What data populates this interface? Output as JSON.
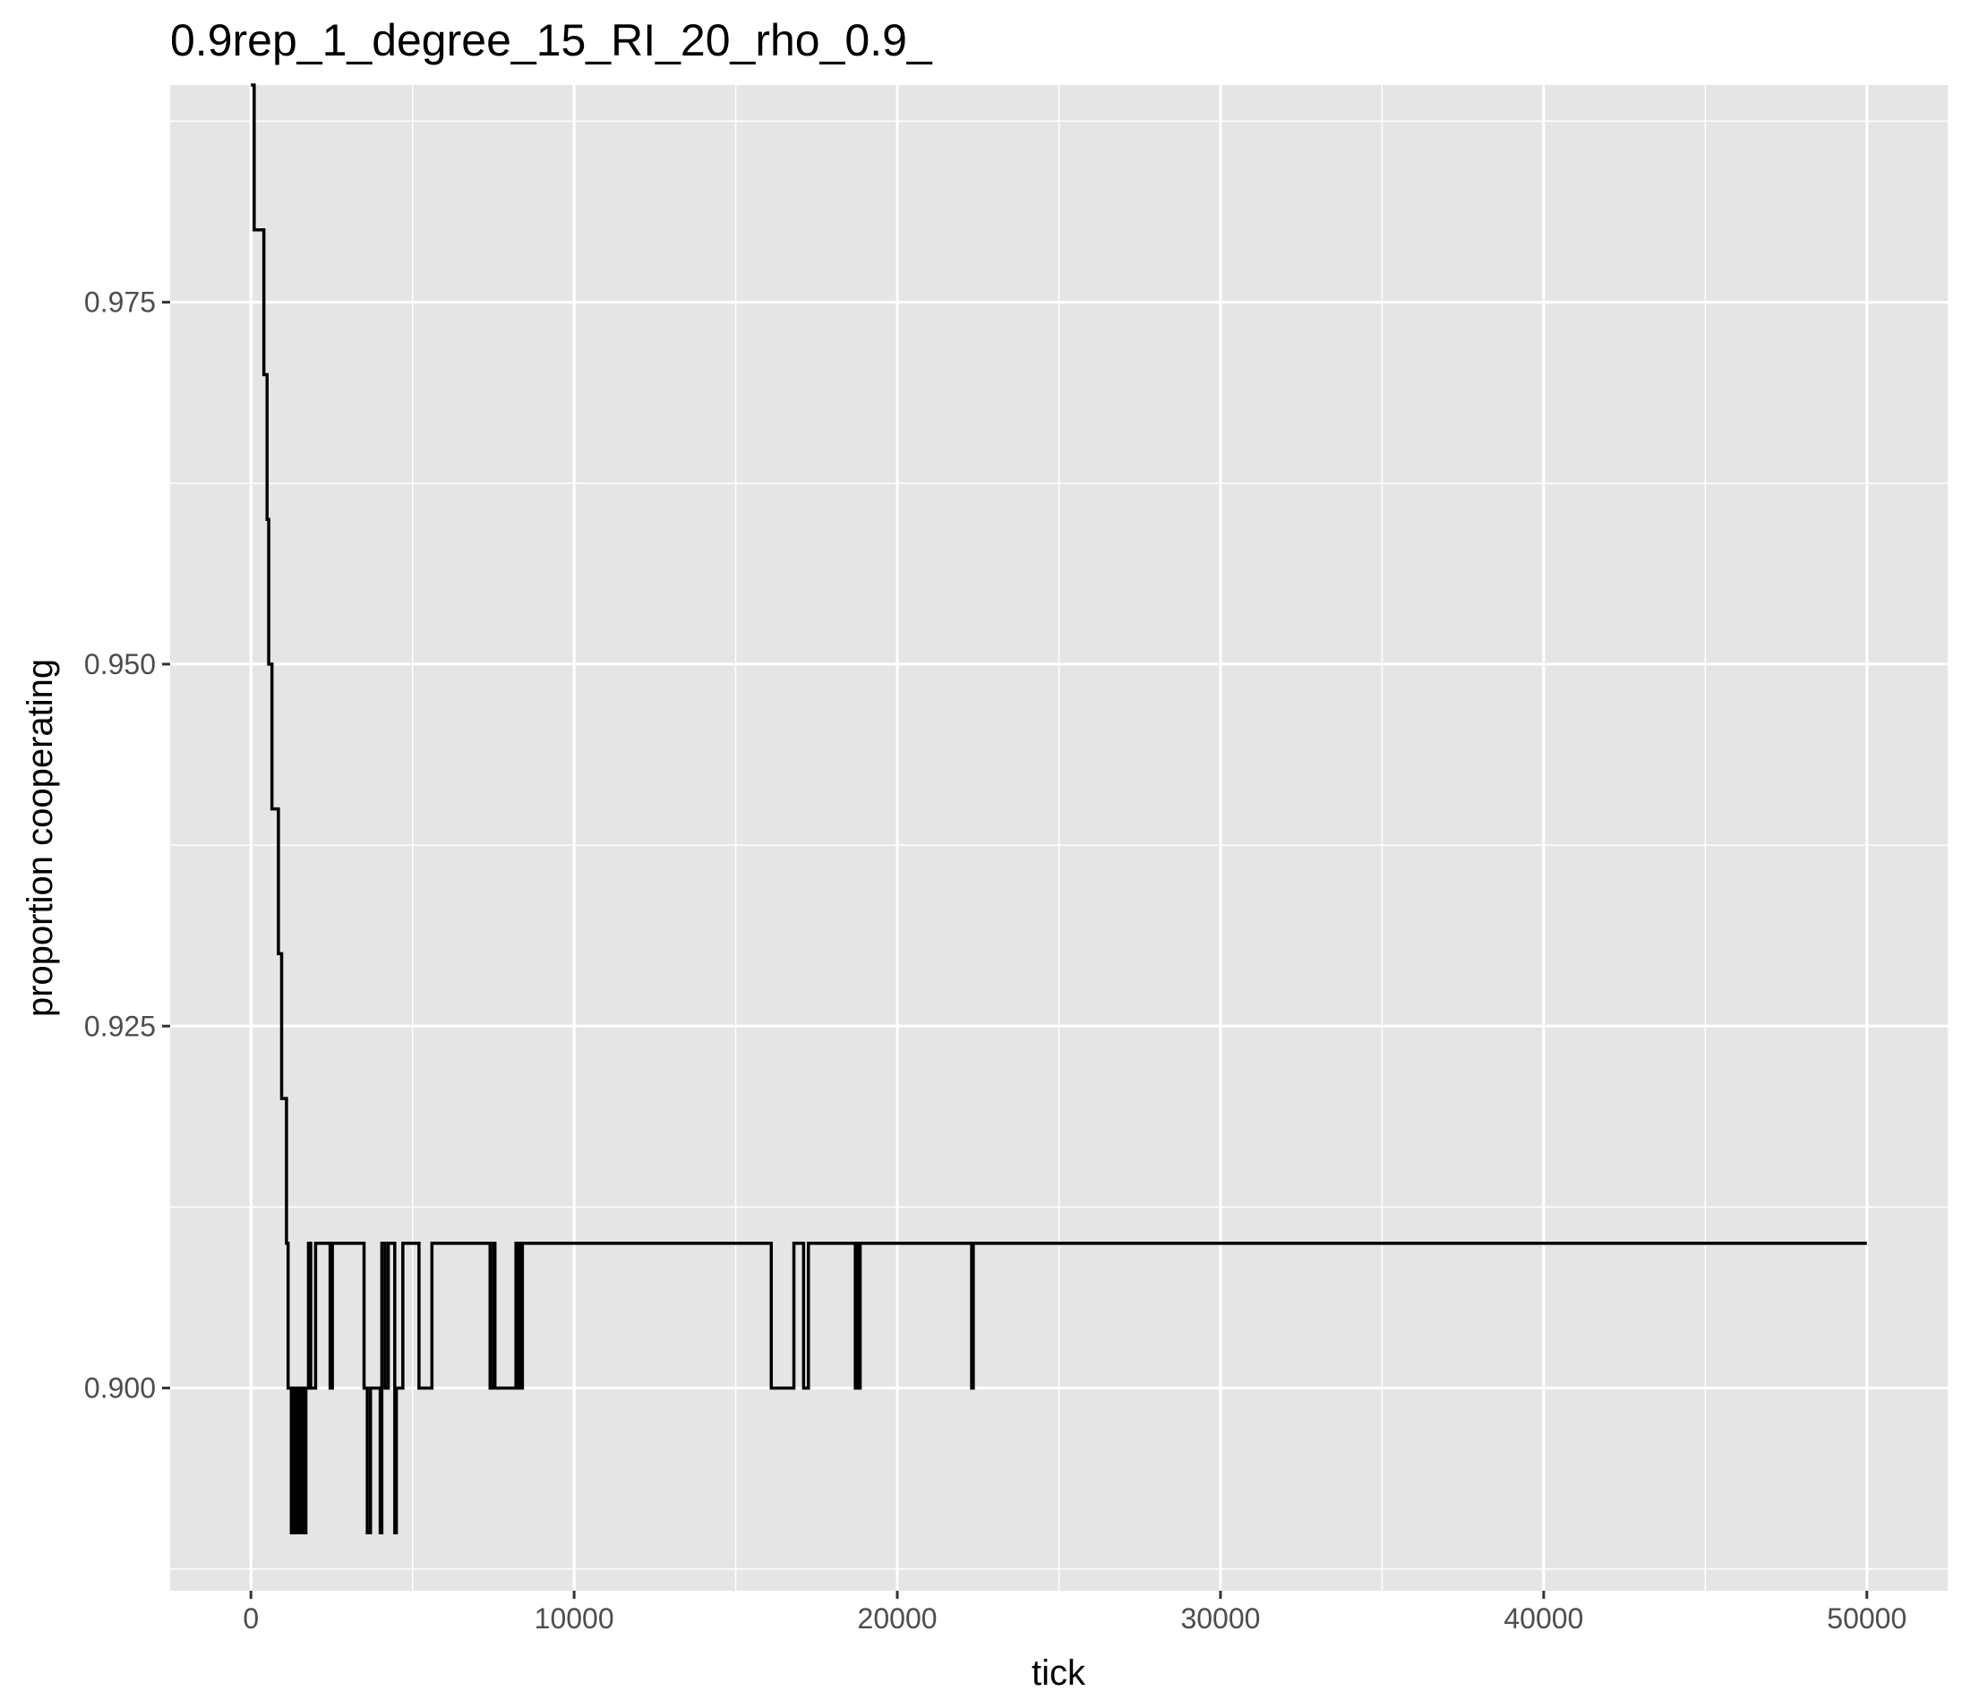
{
  "chart_data": {
    "type": "line",
    "step": true,
    "title": "0.9rep_1_degree_15_RI_20_rho_0.9_",
    "xlabel": "tick",
    "ylabel": "proportion cooperating",
    "xlim": [
      -2500,
      52500
    ],
    "ylim": [
      0.886,
      0.99
    ],
    "x_ticks": [
      0,
      10000,
      20000,
      30000,
      40000,
      50000
    ],
    "x_tick_labels": [
      "0",
      "10000",
      "20000",
      "30000",
      "40000",
      "50000"
    ],
    "x_minor_ticks": [
      5000,
      15000,
      25000,
      35000,
      45000
    ],
    "y_ticks": [
      0.9,
      0.925,
      0.95,
      0.975
    ],
    "y_tick_labels": [
      "0.900",
      "0.925",
      "0.950",
      "0.975"
    ],
    "y_minor_ticks": [
      0.8875,
      0.9125,
      0.9375,
      0.9625,
      0.9875
    ],
    "grid": true,
    "panel_background": "#e5e5e5",
    "grid_color": "#ffffff",
    "line_color": "#000000",
    "series": [
      {
        "x": [
          0,
          100,
          400,
          500,
          550,
          650,
          700,
          850,
          950,
          1100,
          1150,
          1250,
          1300,
          1350,
          1400,
          1480,
          1560,
          1620,
          1700,
          1780,
          1850,
          1900,
          2000,
          2050,
          2150,
          2450,
          2520,
          2600,
          3400,
          3500,
          3600,
          3700,
          3800,
          4000,
          4050,
          4150,
          4250,
          4350,
          4450,
          4500,
          4550,
          4700,
          4800,
          5200,
          5300,
          5600,
          5700,
          7400,
          7500,
          7550,
          7650,
          7700,
          8200,
          8250,
          8300,
          8350,
          8400,
          8450,
          16100,
          16200,
          16800,
          17100,
          17250,
          17400,
          18700,
          18750,
          18800,
          18850,
          22300,
          22350,
          50000
        ],
        "y": [
          0.99,
          0.98,
          0.97,
          0.96,
          0.95,
          0.94,
          0.94,
          0.93,
          0.92,
          0.91,
          0.9,
          0.89,
          0.9,
          0.89,
          0.9,
          0.89,
          0.9,
          0.89,
          0.9,
          0.91,
          0.9,
          0.9,
          0.91,
          0.91,
          0.91,
          0.9,
          0.91,
          0.91,
          0.91,
          0.9,
          0.89,
          0.9,
          0.9,
          0.89,
          0.91,
          0.9,
          0.91,
          0.91,
          0.89,
          0.9,
          0.9,
          0.91,
          0.91,
          0.9,
          0.9,
          0.91,
          0.91,
          0.9,
          0.91,
          0.9,
          0.9,
          0.9,
          0.91,
          0.9,
          0.91,
          0.9,
          0.91,
          0.91,
          0.9,
          0.9,
          0.91,
          0.9,
          0.91,
          0.91,
          0.9,
          0.91,
          0.9,
          0.91,
          0.9,
          0.91,
          0.91
        ]
      }
    ]
  }
}
